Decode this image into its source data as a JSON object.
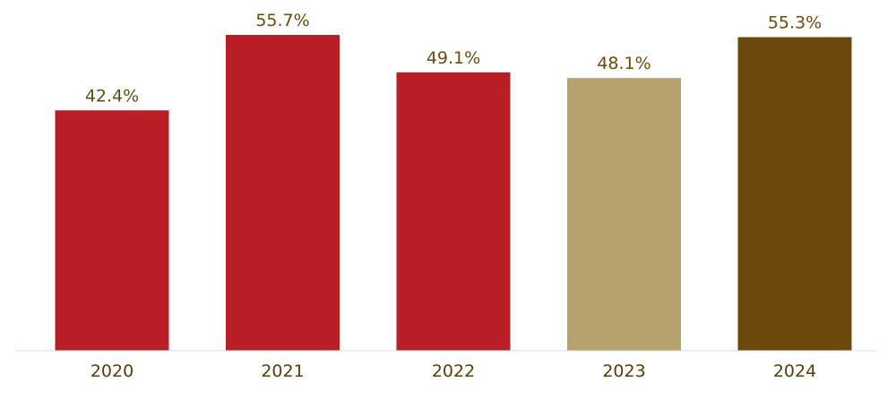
{
  "chart_data": {
    "type": "bar",
    "title": "",
    "xlabel": "",
    "ylabel": "",
    "categories": [
      "2020",
      "2021",
      "2022",
      "2023",
      "2024"
    ],
    "values": [
      42.4,
      55.7,
      49.1,
      48.1,
      55.3
    ],
    "value_labels": [
      "42.4%",
      "55.7%",
      "49.1%",
      "48.1%",
      "55.3%"
    ],
    "ylim": [
      0,
      60
    ],
    "grid": false,
    "legend": "none",
    "colors": [
      "#b81f25",
      "#b81f25",
      "#b81f25",
      "#b5a26d",
      "#6b480c"
    ],
    "axis_color": "#d9d9d9",
    "label_color": "#6b4a0c"
  }
}
